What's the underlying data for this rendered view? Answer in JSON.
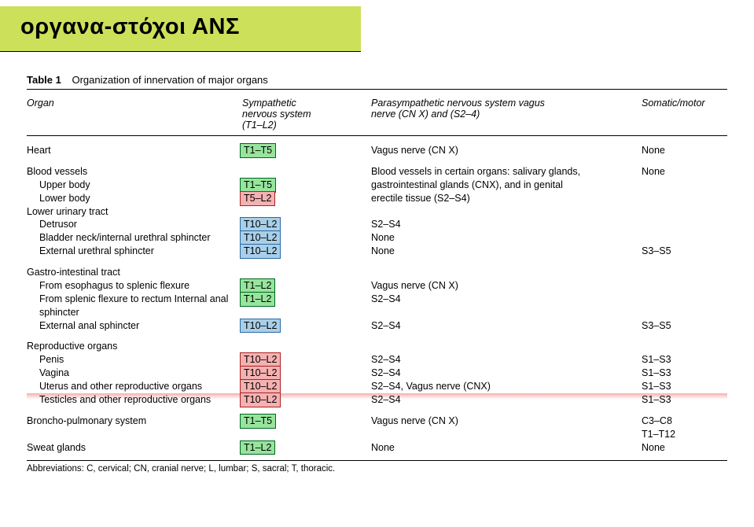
{
  "title": "οργανα-στόχοι ΑΝΣ",
  "caption_label": "Table 1",
  "caption_text": "Organization of innervation of major organs",
  "headers": {
    "organ": "Organ",
    "sympathetic": "Sympathetic\nnervous system\n(T1–L2)",
    "parasympathetic": "Parasympathetic nervous system vagus\nnerve (CN X) and (S2–4)",
    "somatic": "Somatic/motor"
  },
  "rows": {
    "heart": {
      "organ": "Heart",
      "symp": "T1–T5",
      "para": "Vagus nerve (CN X)",
      "som": "None"
    },
    "bv_header": "Blood vessels",
    "bv_upper": {
      "organ": "Upper body",
      "symp": "T1–T5"
    },
    "bv_lower": {
      "organ": "Lower body",
      "symp": "T5–L2"
    },
    "bv_para": "Blood vessels in certain organs: salivary glands,\ngastrointestinal glands (CNX), and in genital\nerectile tissue (S2–S4)",
    "bv_som": "None",
    "lut_header": "Lower urinary tract",
    "lut_detrusor": {
      "organ": "Detrusor",
      "symp": "T10–L2",
      "para": "S2–S4",
      "som": ""
    },
    "lut_bladder": {
      "organ": "Bladder neck/internal urethral sphincter",
      "symp": "T10–L2",
      "para": "None",
      "som": ""
    },
    "lut_ext": {
      "organ": "External urethral sphincter",
      "symp": "T10–L2",
      "para": "None",
      "som": "S3–S5"
    },
    "gi_header": "Gastro-intestinal tract",
    "gi_eso": {
      "organ": "From esophagus to splenic flexure",
      "symp": "T1–L2",
      "para": "Vagus nerve (CN X)",
      "som": ""
    },
    "gi_splenic": {
      "organ": "From splenic flexure to rectum Internal anal sphincter",
      "symp": "T1–L2",
      "para": "S2–S4",
      "som": ""
    },
    "gi_ext": {
      "organ": "External anal sphincter",
      "symp": "T10–L2",
      "para": "S2–S4",
      "som": "S3–S5"
    },
    "repro_header": "Reproductive organs",
    "repro_penis": {
      "organ": "Penis",
      "symp": "T10–L2",
      "para": "S2–S4",
      "som": "S1–S3"
    },
    "repro_vagina": {
      "organ": "Vagina",
      "symp": "T10–L2",
      "para": "S2–S4",
      "som": "S1–S3"
    },
    "repro_uterus": {
      "organ": "Uterus and other reproductive organs",
      "symp": "T10–L2",
      "para": "S2–S4, Vagus nerve (CNX)",
      "som": "S1–S3"
    },
    "repro_test": {
      "organ": "Testicles and other reproductive organs",
      "symp": "T10–L2",
      "para": "S2–S4",
      "som": "S1–S3"
    },
    "broncho": {
      "organ": "Broncho-pulmonary system",
      "symp": "T1–T5",
      "para": "Vagus nerve (CN X)",
      "som": "C3–C8\nT1–T12"
    },
    "sweat": {
      "organ": "Sweat glands",
      "symp": "T1–L2",
      "para": "None",
      "som": "None"
    }
  },
  "abbrev": "Abbreviations: C, cervical; CN, cranial nerve; L, lumbar; S, sacral; T, thoracic.",
  "colors": {
    "banner_bg": "#cde05a",
    "hl_green": "#97e49c",
    "hl_red": "#f5b1b1",
    "hl_blue": "#a9cfe8"
  }
}
